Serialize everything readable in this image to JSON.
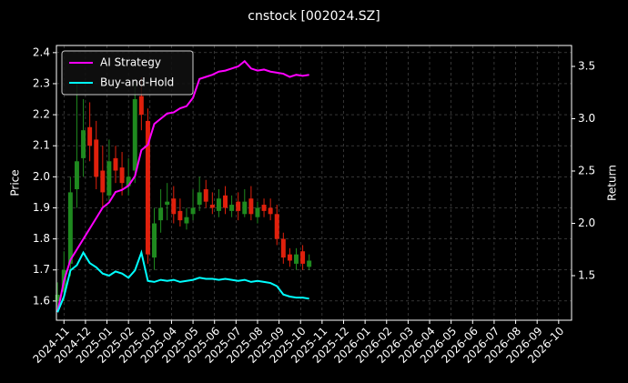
{
  "chart_data": {
    "type": "candlestick_returns",
    "title": "cnstock [002024.SZ]",
    "y_label": "Price",
    "y2_label": "Return",
    "x": [
      -0.3,
      0.0,
      0.3,
      0.6,
      0.9,
      1.2,
      1.5,
      1.8,
      2.1,
      2.4,
      2.7,
      3.0,
      3.3,
      3.6,
      3.9,
      4.2,
      4.5,
      4.8,
      5.1,
      5.4,
      5.7,
      6.0,
      6.3,
      6.6,
      6.9,
      7.2,
      7.5,
      7.8,
      8.1,
      8.4,
      8.7,
      9.0,
      9.3,
      9.6,
      9.9,
      10.2,
      10.5,
      10.8,
      11.1,
      11.4
    ],
    "open": [
      1.6,
      1.63,
      1.72,
      1.96,
      2.06,
      2.16,
      2.12,
      2.02,
      1.94,
      2.06,
      2.03,
      1.97,
      2.02,
      2.26,
      2.18,
      1.74,
      1.86,
      1.91,
      1.93,
      1.89,
      1.85,
      1.88,
      1.91,
      1.96,
      1.91,
      1.89,
      1.94,
      1.89,
      1.92,
      1.88,
      1.93,
      1.87,
      1.91,
      1.9,
      1.88,
      1.8,
      1.75,
      1.72,
      1.76,
      1.71
    ],
    "high": [
      1.66,
      1.76,
      2.0,
      2.3,
      2.25,
      2.24,
      2.18,
      2.1,
      2.12,
      2.1,
      2.08,
      2.06,
      2.3,
      2.32,
      2.22,
      1.9,
      1.96,
      1.98,
      1.97,
      1.93,
      1.9,
      1.96,
      2.0,
      1.99,
      1.95,
      1.96,
      1.97,
      1.94,
      1.95,
      1.96,
      1.97,
      1.92,
      1.93,
      1.93,
      1.91,
      1.82,
      1.77,
      1.77,
      1.78,
      1.75
    ],
    "low": [
      1.57,
      1.6,
      1.68,
      1.9,
      2.0,
      2.05,
      1.96,
      1.9,
      1.92,
      1.98,
      1.94,
      1.94,
      1.98,
      2.15,
      1.72,
      1.7,
      1.82,
      1.86,
      1.85,
      1.84,
      1.83,
      1.86,
      1.89,
      1.9,
      1.88,
      1.87,
      1.88,
      1.87,
      1.86,
      1.87,
      1.86,
      1.85,
      1.87,
      1.86,
      1.78,
      1.72,
      1.71,
      1.7,
      1.7,
      1.7
    ],
    "close": [
      1.62,
      1.7,
      1.95,
      2.05,
      2.15,
      2.1,
      2.0,
      1.95,
      2.05,
      2.02,
      1.98,
      2.0,
      2.25,
      2.2,
      1.75,
      1.85,
      1.9,
      1.92,
      1.88,
      1.86,
      1.87,
      1.9,
      1.95,
      1.92,
      1.9,
      1.93,
      1.9,
      1.91,
      1.89,
      1.92,
      1.88,
      1.9,
      1.89,
      1.88,
      1.8,
      1.74,
      1.73,
      1.75,
      1.72,
      1.73
    ],
    "up_color": "#1f8a1f",
    "down_color": "#e0200c",
    "series": [
      {
        "name": "AI Strategy",
        "color": "#ff00ff",
        "axis": "y2",
        "values": [
          1.15,
          1.45,
          1.65,
          1.75,
          1.85,
          1.95,
          2.05,
          2.15,
          2.2,
          2.3,
          2.32,
          2.36,
          2.45,
          2.7,
          2.75,
          2.95,
          3.0,
          3.05,
          3.06,
          3.1,
          3.12,
          3.2,
          3.38,
          3.4,
          3.42,
          3.45,
          3.46,
          3.48,
          3.5,
          3.55,
          3.48,
          3.46,
          3.47,
          3.45,
          3.44,
          3.43,
          3.4,
          3.42,
          3.41,
          3.42
        ]
      },
      {
        "name": "Buy-and-Hold",
        "color": "#00ffff",
        "axis": "y2",
        "values": [
          1.15,
          1.3,
          1.55,
          1.6,
          1.72,
          1.62,
          1.58,
          1.52,
          1.5,
          1.54,
          1.52,
          1.48,
          1.55,
          1.72,
          1.45,
          1.44,
          1.46,
          1.45,
          1.46,
          1.44,
          1.45,
          1.46,
          1.48,
          1.47,
          1.47,
          1.46,
          1.47,
          1.46,
          1.45,
          1.46,
          1.44,
          1.45,
          1.44,
          1.43,
          1.4,
          1.32,
          1.3,
          1.29,
          1.29,
          1.28
        ]
      }
    ],
    "xlim": [
      -0.35,
      23.6
    ],
    "xticks": [
      {
        "value": 0,
        "label": "2024-11"
      },
      {
        "value": 1,
        "label": "2024-12"
      },
      {
        "value": 2,
        "label": "2025-01"
      },
      {
        "value": 3,
        "label": "2025-02"
      },
      {
        "value": 4,
        "label": "2025-03"
      },
      {
        "value": 5,
        "label": "2025-04"
      },
      {
        "value": 6,
        "label": "2025-05"
      },
      {
        "value": 7,
        "label": "2025-06"
      },
      {
        "value": 8,
        "label": "2025-07"
      },
      {
        "value": 9,
        "label": "2025-08"
      },
      {
        "value": 10,
        "label": "2025-09"
      },
      {
        "value": 11,
        "label": "2025-10"
      },
      {
        "value": 12,
        "label": "2025-11"
      },
      {
        "value": 13,
        "label": "2025-12"
      },
      {
        "value": 14,
        "label": "2026-01"
      },
      {
        "value": 15,
        "label": "2026-02"
      },
      {
        "value": 16,
        "label": "2026-03"
      },
      {
        "value": 17,
        "label": "2026-04"
      },
      {
        "value": 18,
        "label": "2026-05"
      },
      {
        "value": 19,
        "label": "2026-06"
      },
      {
        "value": 20,
        "label": "2026-07"
      },
      {
        "value": 21,
        "label": "2026-08"
      },
      {
        "value": 22,
        "label": "2026-09"
      },
      {
        "value": 23,
        "label": "2026-10"
      }
    ],
    "ylim": [
      1.538,
      2.423
    ],
    "yticks": [
      1.6,
      1.7,
      1.8,
      1.9,
      {
        "value": 2,
        "label": "2.0"
      },
      2.1,
      2.2,
      2.3,
      2.4
    ],
    "y2lim": [
      1.074,
      3.7
    ],
    "y2ticks": [
      1.5,
      {
        "value": 2,
        "label": "2.0"
      },
      2.5,
      {
        "value": 3,
        "label": "3.0"
      },
      3.5
    ],
    "grid": true,
    "legend": "upper left"
  }
}
